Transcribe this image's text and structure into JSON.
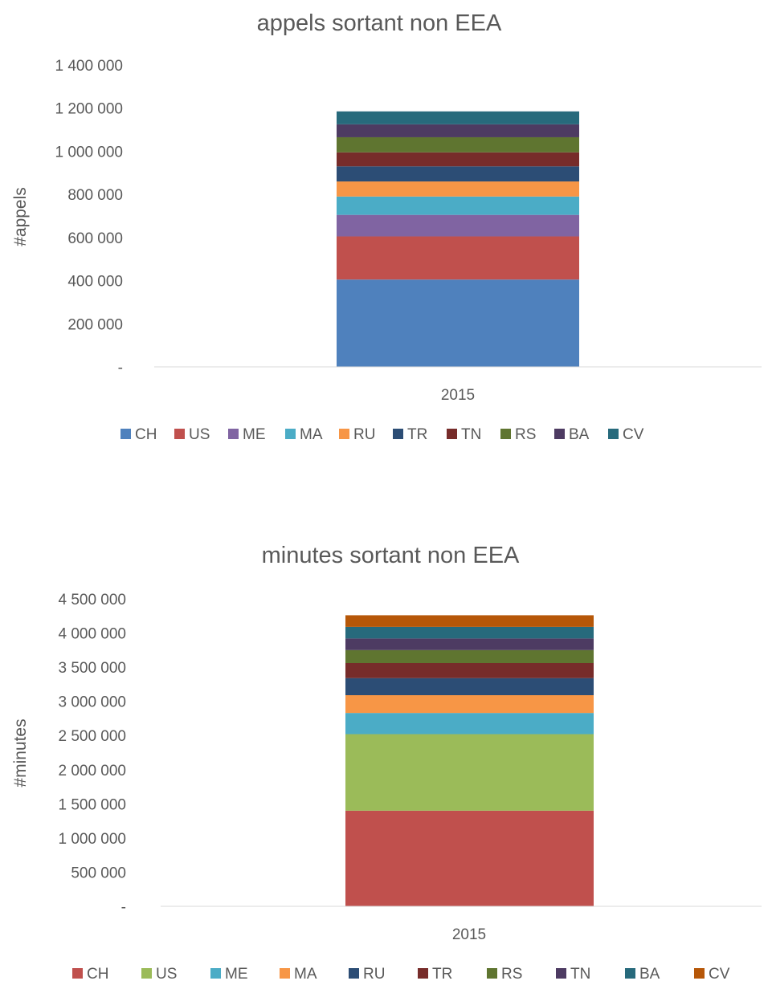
{
  "chart_data": [
    {
      "type": "bar",
      "stacked": true,
      "title": "appels sortant non EEA",
      "xlabel": "",
      "ylabel": "#appels",
      "categories": [
        "2015"
      ],
      "ylim": [
        0,
        1400000
      ],
      "yticks": [
        0,
        200000,
        400000,
        600000,
        800000,
        1000000,
        1200000,
        1400000
      ],
      "ytick_labels": [
        "-",
        "200 000",
        "400 000",
        "600 000",
        "800 000",
        "1 000 000",
        "1 200 000",
        "1 400 000"
      ],
      "grid": false,
      "legend": "bottom",
      "series": [
        {
          "name": "CH",
          "values": [
            405000
          ],
          "color": "#4F81BD"
        },
        {
          "name": "US",
          "values": [
            200000
          ],
          "color": "#C0504D"
        },
        {
          "name": "ME",
          "values": [
            100000
          ],
          "color": "#8064A2"
        },
        {
          "name": "MA",
          "values": [
            85000
          ],
          "color": "#4BACC6"
        },
        {
          "name": "RU",
          "values": [
            70000
          ],
          "color": "#F79646"
        },
        {
          "name": "TR",
          "values": [
            70000
          ],
          "color": "#2C4D75"
        },
        {
          "name": "TN",
          "values": [
            65000
          ],
          "color": "#772C2A"
        },
        {
          "name": "RS",
          "values": [
            70000
          ],
          "color": "#5F7530"
        },
        {
          "name": "BA",
          "values": [
            60000
          ],
          "color": "#4D3B62"
        },
        {
          "name": "CV",
          "values": [
            60000
          ],
          "color": "#276A7C"
        }
      ]
    },
    {
      "type": "bar",
      "stacked": true,
      "title": "minutes sortant non EEA",
      "xlabel": "",
      "ylabel": "#minutes",
      "categories": [
        "2015"
      ],
      "ylim": [
        0,
        4500000
      ],
      "yticks": [
        0,
        500000,
        1000000,
        1500000,
        2000000,
        2500000,
        3000000,
        3500000,
        4000000,
        4500000
      ],
      "ytick_labels": [
        "-",
        "500 000",
        "1 000 000",
        "1 500 000",
        "2 000 000",
        "2 500 000",
        "3 000 000",
        "3 500 000",
        "4 000 000",
        "4 500 000"
      ],
      "grid": false,
      "legend": "bottom",
      "series": [
        {
          "name": "CH",
          "values": [
            1400000
          ],
          "color": "#C0504D"
        },
        {
          "name": "US",
          "values": [
            1120000
          ],
          "color": "#9BBB59"
        },
        {
          "name": "ME",
          "values": [
            310000
          ],
          "color": "#4BACC6"
        },
        {
          "name": "MA",
          "values": [
            260000
          ],
          "color": "#F79646"
        },
        {
          "name": "RU",
          "values": [
            250000
          ],
          "color": "#2C4D75"
        },
        {
          "name": "TR",
          "values": [
            220000
          ],
          "color": "#772C2A"
        },
        {
          "name": "RS",
          "values": [
            190000
          ],
          "color": "#5F7530"
        },
        {
          "name": "TN",
          "values": [
            170000
          ],
          "color": "#4D3B62"
        },
        {
          "name": "BA",
          "values": [
            170000
          ],
          "color": "#276A7C"
        },
        {
          "name": "CV",
          "values": [
            170000
          ],
          "color": "#B65708"
        }
      ]
    }
  ]
}
